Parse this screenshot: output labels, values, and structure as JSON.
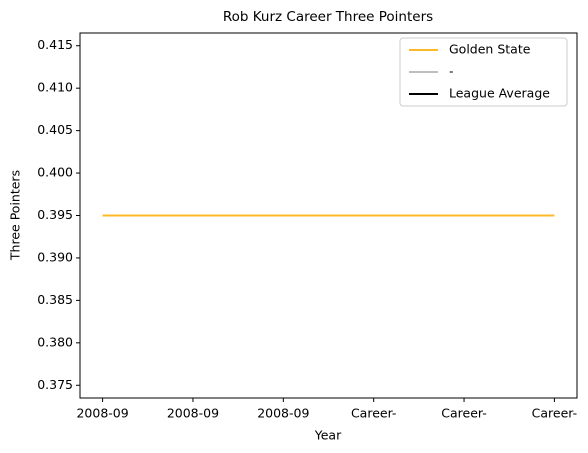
{
  "chart_data": {
    "type": "line",
    "title": "Rob Kurz Career Three Pointers",
    "x_label": "Year",
    "y_label": "Three Pointers",
    "categories": [
      "2008-09",
      "2008-09",
      "2008-09",
      "Career-",
      "Career-",
      "Career-"
    ],
    "series": [
      {
        "name": "Golden State",
        "color": "#fdb927",
        "values": [
          0.395,
          0.395,
          0.395,
          0.395,
          0.395,
          0.395
        ]
      },
      {
        "name": "-",
        "color": "#bebebe",
        "values": [
          null,
          null,
          null,
          null,
          null,
          null
        ]
      },
      {
        "name": "League Average",
        "color": "#000000",
        "values": [
          null,
          null,
          null,
          null,
          null,
          null
        ]
      }
    ],
    "ylim": [
      0.3735,
      0.4165
    ],
    "yticks": [
      0.375,
      {
        "value": 0.38,
        "label": "0.380"
      },
      0.385,
      {
        "value": 0.39,
        "label": "0.390"
      },
      0.395,
      {
        "value": 0.4,
        "label": "0.400"
      },
      0.405,
      {
        "value": 0.41,
        "label": "0.410"
      },
      0.415
    ],
    "legend": "upper right",
    "grid": false
  }
}
